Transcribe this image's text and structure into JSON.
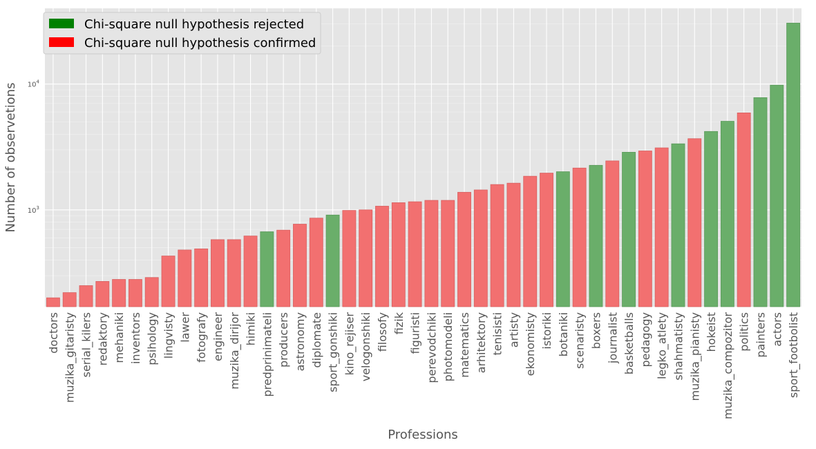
{
  "chart_data": {
    "type": "bar",
    "title": "",
    "xlabel": "Professions",
    "ylabel": "Number of observetions",
    "yscale": "log",
    "ylim": [
      170,
      40000
    ],
    "grid": true,
    "legend_position": "top-left",
    "legend": [
      {
        "label": "Chi-square null hypothesis rejected",
        "status": "rejected",
        "color": "#008000"
      },
      {
        "label": "Chi-square null hypothesis confirmed",
        "status": "confirmed",
        "color": "#ff0000"
      }
    ],
    "colors": {
      "rejected_bar": "#6aae6a",
      "confirmed_bar": "#f27070",
      "plot_background": "#e5e5e5",
      "grid": "#ffffff"
    },
    "y_ticks": [
      {
        "value": 1000,
        "base": "10",
        "exp": "3"
      },
      {
        "value": 10000,
        "base": "10",
        "exp": "4"
      }
    ],
    "categories": [
      "doctors",
      "muzika_gitaristy",
      "serial_kilers",
      "redaktory",
      "mehaniki",
      "inventors",
      "psihology",
      "lingvisty",
      "lawer",
      "fotografy",
      "engineer",
      "muzika_dirijor",
      "himiki",
      "predprinimateli",
      "producers",
      "astronomy",
      "diplomate",
      "sport_gonshiki",
      "kino_rejiser",
      "velogonshiki",
      "filosofy",
      "fizik",
      "figuristi",
      "perevodchiki",
      "photomodeli",
      "matematics",
      "arhitektory",
      "tenisisti",
      "artisty",
      "ekonomisty",
      "istoriki",
      "botaniki",
      "scenaristy",
      "boxers",
      "journalist",
      "basketballs",
      "pedagogy",
      "legko_atlety",
      "shahmatisty",
      "muzika_pianisty",
      "hokeist",
      "muzika_compozitor",
      "politics",
      "painters",
      "actors",
      "sport_footbolist"
    ],
    "values": [
      200,
      220,
      250,
      270,
      280,
      280,
      290,
      430,
      480,
      490,
      580,
      580,
      620,
      670,
      690,
      770,
      860,
      910,
      990,
      1000,
      1070,
      1140,
      1160,
      1190,
      1190,
      1380,
      1440,
      1590,
      1630,
      1850,
      1960,
      2010,
      2150,
      2260,
      2450,
      2870,
      2940,
      3110,
      3350,
      3680,
      4200,
      5060,
      5900,
      7800,
      9800,
      30500
    ],
    "status": [
      "confirmed",
      "confirmed",
      "confirmed",
      "confirmed",
      "confirmed",
      "confirmed",
      "confirmed",
      "confirmed",
      "confirmed",
      "confirmed",
      "confirmed",
      "confirmed",
      "confirmed",
      "rejected",
      "confirmed",
      "confirmed",
      "confirmed",
      "rejected",
      "confirmed",
      "confirmed",
      "confirmed",
      "confirmed",
      "confirmed",
      "confirmed",
      "confirmed",
      "confirmed",
      "confirmed",
      "confirmed",
      "confirmed",
      "confirmed",
      "confirmed",
      "rejected",
      "confirmed",
      "rejected",
      "confirmed",
      "rejected",
      "confirmed",
      "confirmed",
      "rejected",
      "confirmed",
      "rejected",
      "rejected",
      "confirmed",
      "rejected",
      "rejected",
      "rejected"
    ]
  }
}
